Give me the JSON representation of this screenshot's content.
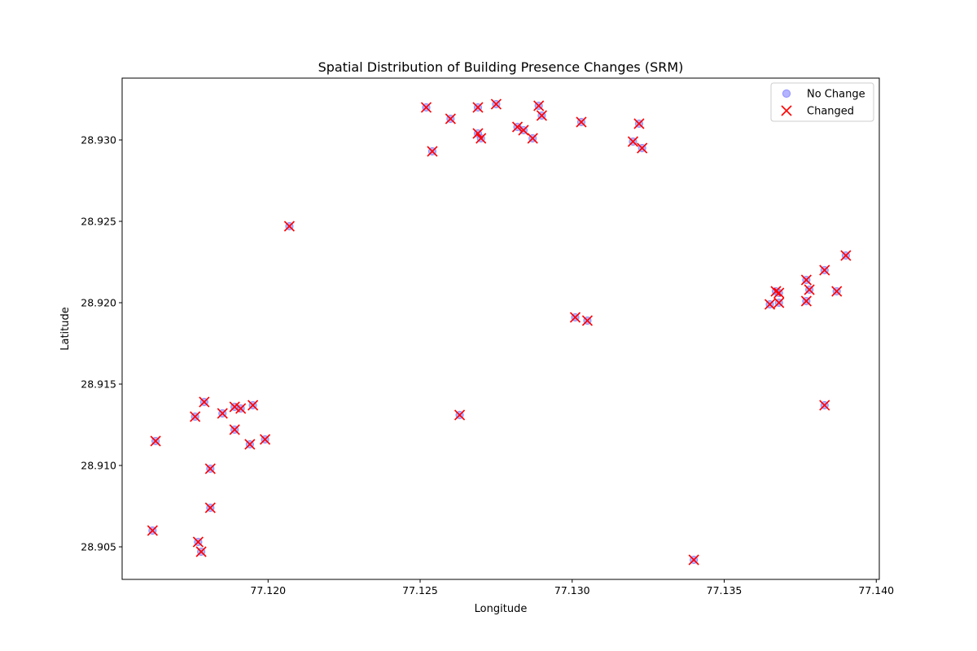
{
  "chart_data": {
    "type": "scatter",
    "title": "Spatial Distribution of Building Presence Changes (SRM)",
    "xlabel": "Longitude",
    "ylabel": "Latitude",
    "xlim": [
      77.1152,
      77.1401
    ],
    "ylim": [
      28.903,
      28.9338
    ],
    "xticks": [
      77.12,
      77.125,
      77.13,
      77.135,
      77.14
    ],
    "xtick_labels": [
      "77.120",
      "77.125",
      "77.130",
      "77.135",
      "77.140"
    ],
    "yticks": [
      28.905,
      28.91,
      28.915,
      28.92,
      28.925,
      28.93
    ],
    "ytick_labels": [
      "28.905",
      "28.910",
      "28.915",
      "28.920",
      "28.925",
      "28.930"
    ],
    "grid": false,
    "legend_position": "top-right",
    "series": [
      {
        "name": "No Change",
        "marker": "circle",
        "color": "#8080ff",
        "points": [
          [
            77.1207,
            28.9247
          ],
          [
            77.1252,
            28.932
          ],
          [
            77.126,
            28.9313
          ],
          [
            77.1254,
            28.9293
          ],
          [
            77.1269,
            28.932
          ],
          [
            77.1275,
            28.9322
          ],
          [
            77.1269,
            28.9304
          ],
          [
            77.127,
            28.9301
          ],
          [
            77.1282,
            28.9308
          ],
          [
            77.1284,
            28.9306
          ],
          [
            77.1287,
            28.9301
          ],
          [
            77.1289,
            28.9321
          ],
          [
            77.129,
            28.9315
          ],
          [
            77.1303,
            28.9311
          ],
          [
            77.1322,
            28.931
          ],
          [
            77.132,
            28.9299
          ],
          [
            77.1323,
            28.9295
          ],
          [
            77.1301,
            28.9191
          ],
          [
            77.1305,
            28.9189
          ],
          [
            77.1263,
            28.9131
          ],
          [
            77.134,
            28.9042
          ],
          [
            77.1365,
            28.9199
          ],
          [
            77.1367,
            28.9207
          ],
          [
            77.1368,
            28.9206
          ],
          [
            77.1368,
            28.92
          ],
          [
            77.1377,
            28.9214
          ],
          [
            77.1378,
            28.9208
          ],
          [
            77.1377,
            28.9201
          ],
          [
            77.1383,
            28.922
          ],
          [
            77.1387,
            28.9207
          ],
          [
            77.139,
            28.9229
          ],
          [
            77.1383,
            28.9137
          ],
          [
            77.1163,
            28.9115
          ],
          [
            77.1162,
            28.906
          ],
          [
            77.1176,
            28.913
          ],
          [
            77.1179,
            28.9139
          ],
          [
            77.1181,
            28.9098
          ],
          [
            77.1181,
            28.9074
          ],
          [
            77.1177,
            28.9053
          ],
          [
            77.1178,
            28.9047
          ],
          [
            77.1185,
            28.9132
          ],
          [
            77.1189,
            28.9136
          ],
          [
            77.1191,
            28.9135
          ],
          [
            77.1195,
            28.9137
          ],
          [
            77.1189,
            28.9122
          ],
          [
            77.1194,
            28.9113
          ],
          [
            77.1199,
            28.9116
          ]
        ]
      },
      {
        "name": "Changed",
        "marker": "x",
        "color": "#ff0000",
        "points": [
          [
            77.1207,
            28.9247
          ],
          [
            77.1252,
            28.932
          ],
          [
            77.126,
            28.9313
          ],
          [
            77.1254,
            28.9293
          ],
          [
            77.1269,
            28.932
          ],
          [
            77.1275,
            28.9322
          ],
          [
            77.1269,
            28.9304
          ],
          [
            77.127,
            28.9301
          ],
          [
            77.1282,
            28.9308
          ],
          [
            77.1284,
            28.9306
          ],
          [
            77.1287,
            28.9301
          ],
          [
            77.1289,
            28.9321
          ],
          [
            77.129,
            28.9315
          ],
          [
            77.1303,
            28.9311
          ],
          [
            77.1322,
            28.931
          ],
          [
            77.132,
            28.9299
          ],
          [
            77.1323,
            28.9295
          ],
          [
            77.1301,
            28.9191
          ],
          [
            77.1305,
            28.9189
          ],
          [
            77.1263,
            28.9131
          ],
          [
            77.134,
            28.9042
          ],
          [
            77.1365,
            28.9199
          ],
          [
            77.1367,
            28.9207
          ],
          [
            77.1368,
            28.9206
          ],
          [
            77.1368,
            28.92
          ],
          [
            77.1377,
            28.9214
          ],
          [
            77.1378,
            28.9208
          ],
          [
            77.1377,
            28.9201
          ],
          [
            77.1383,
            28.922
          ],
          [
            77.1387,
            28.9207
          ],
          [
            77.139,
            28.9229
          ],
          [
            77.1383,
            28.9137
          ],
          [
            77.1163,
            28.9115
          ],
          [
            77.1162,
            28.906
          ],
          [
            77.1176,
            28.913
          ],
          [
            77.1179,
            28.9139
          ],
          [
            77.1181,
            28.9098
          ],
          [
            77.1181,
            28.9074
          ],
          [
            77.1177,
            28.9053
          ],
          [
            77.1178,
            28.9047
          ],
          [
            77.1185,
            28.9132
          ],
          [
            77.1189,
            28.9136
          ],
          [
            77.1191,
            28.9135
          ],
          [
            77.1195,
            28.9137
          ],
          [
            77.1189,
            28.9122
          ],
          [
            77.1194,
            28.9113
          ],
          [
            77.1199,
            28.9116
          ]
        ]
      }
    ]
  }
}
